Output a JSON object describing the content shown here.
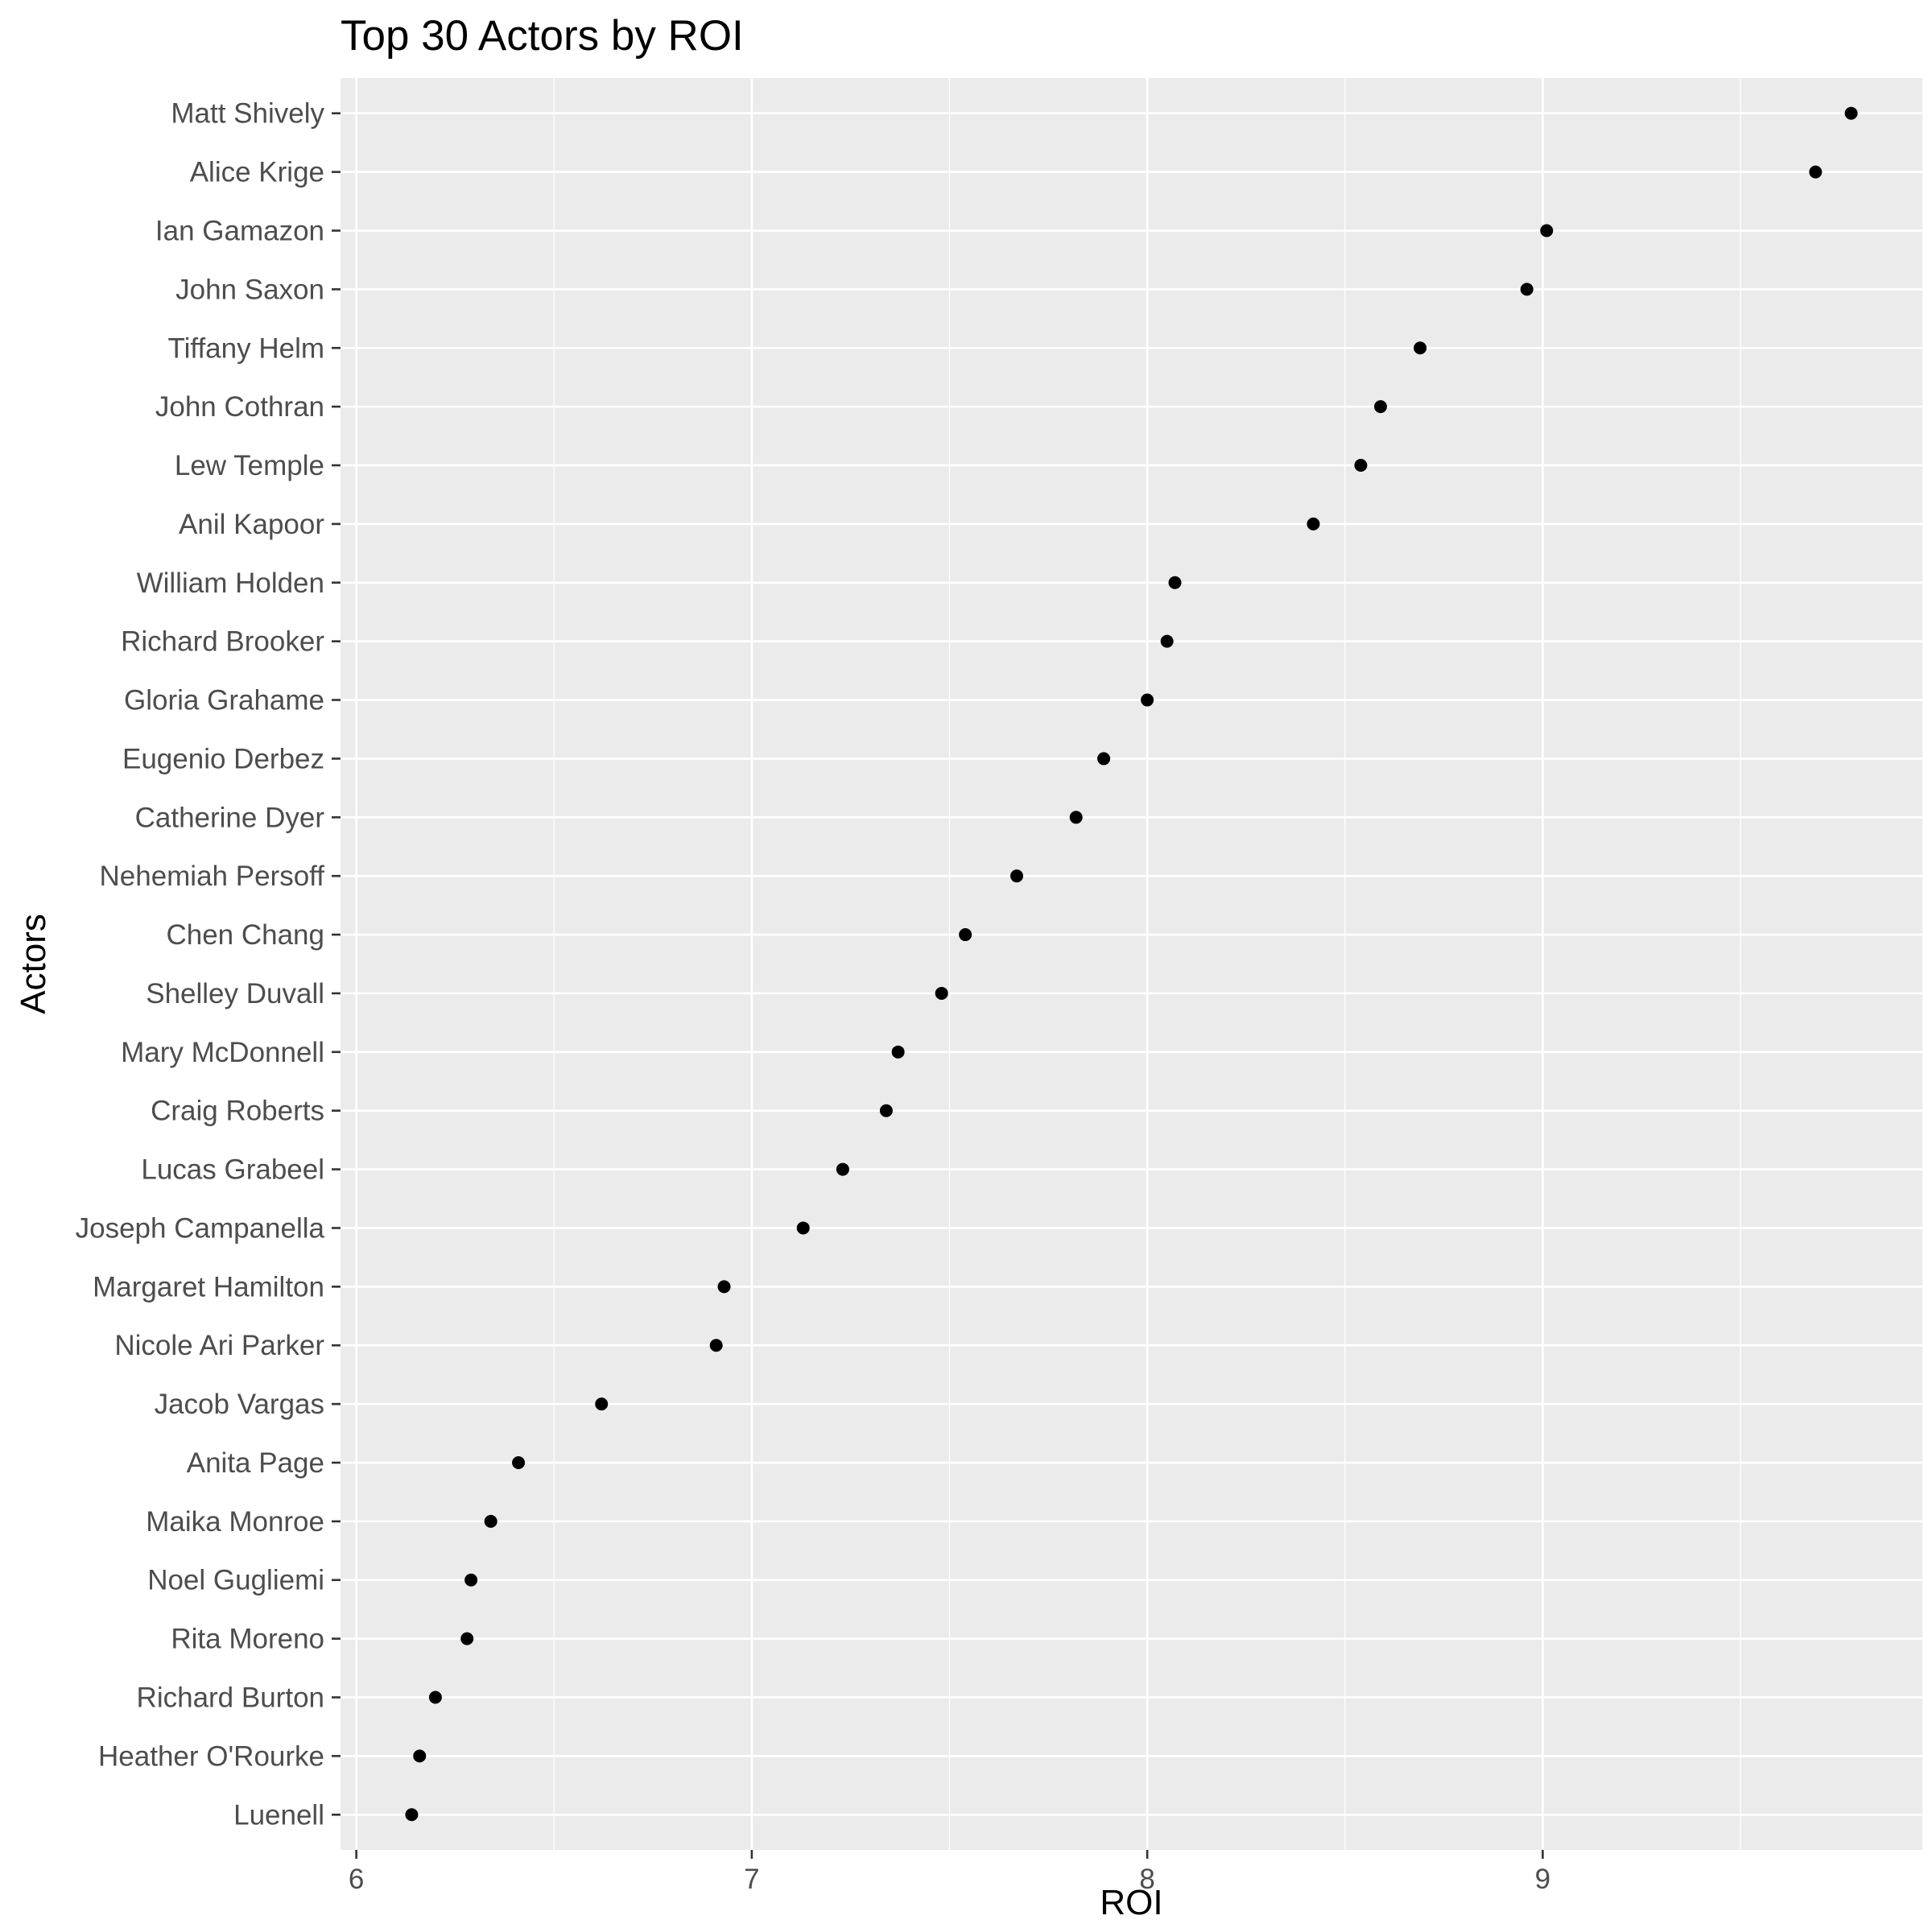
{
  "chart_data": {
    "type": "scatter",
    "title": "Top 30 Actors by ROI",
    "xlabel": "ROI",
    "ylabel": "Actors",
    "xlim": [
      5.96,
      9.96
    ],
    "x_ticks": [
      6,
      7,
      8,
      9
    ],
    "x_tick_labels": [
      "6",
      "7",
      "8",
      "9"
    ],
    "grid": true,
    "points": [
      {
        "actor": "Matt Shively",
        "roi": 9.78
      },
      {
        "actor": "Alice Krige",
        "roi": 9.69
      },
      {
        "actor": "Ian Gamazon",
        "roi": 9.01
      },
      {
        "actor": "John Saxon",
        "roi": 8.96
      },
      {
        "actor": "Tiffany Helm",
        "roi": 8.69
      },
      {
        "actor": "John Cothran",
        "roi": 8.59
      },
      {
        "actor": "Lew Temple",
        "roi": 8.54
      },
      {
        "actor": "Anil Kapoor",
        "roi": 8.42
      },
      {
        "actor": "William Holden",
        "roi": 8.07
      },
      {
        "actor": "Richard Brooker",
        "roi": 8.05
      },
      {
        "actor": "Gloria Grahame",
        "roi": 8.0
      },
      {
        "actor": "Eugenio Derbez",
        "roi": 7.89
      },
      {
        "actor": "Catherine Dyer",
        "roi": 7.82
      },
      {
        "actor": "Nehemiah Persoff",
        "roi": 7.67
      },
      {
        "actor": "Chen Chang",
        "roi": 7.54
      },
      {
        "actor": "Shelley Duvall",
        "roi": 7.48
      },
      {
        "actor": "Mary McDonnell",
        "roi": 7.37
      },
      {
        "actor": "Craig Roberts",
        "roi": 7.34
      },
      {
        "actor": "Lucas Grabeel",
        "roi": 7.23
      },
      {
        "actor": "Joseph Campanella",
        "roi": 7.13
      },
      {
        "actor": "Margaret Hamilton",
        "roi": 6.93
      },
      {
        "actor": "Nicole Ari Parker",
        "roi": 6.91
      },
      {
        "actor": "Jacob Vargas",
        "roi": 6.62
      },
      {
        "actor": "Anita Page",
        "roi": 6.41
      },
      {
        "actor": "Maika Monroe",
        "roi": 6.34
      },
      {
        "actor": "Noel Gugliemi",
        "roi": 6.29
      },
      {
        "actor": "Rita Moreno",
        "roi": 6.28
      },
      {
        "actor": "Richard Burton",
        "roi": 6.2
      },
      {
        "actor": "Heather O'Rourke",
        "roi": 6.16
      },
      {
        "actor": "Luenell",
        "roi": 6.14
      }
    ]
  }
}
